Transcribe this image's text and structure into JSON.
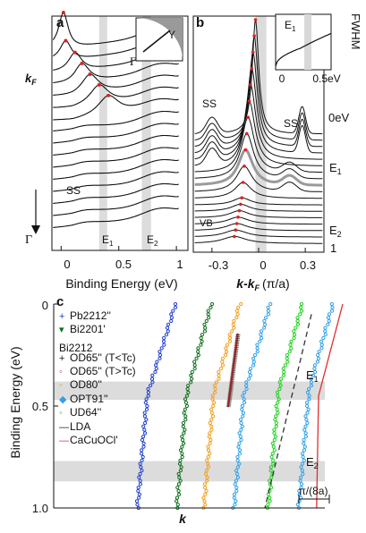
{
  "chart_data": [
    {
      "panel": "a",
      "type": "line",
      "xlabel": "Binding Energy (eV)",
      "xticks": [
        "0",
        "0.5",
        "1"
      ],
      "xlim": [
        -0.08,
        1.1
      ],
      "left_labels": {
        "kf": "k",
        "kf_sub": "F",
        "gamma": "Γ"
      },
      "annotations": {
        "top": "Γ",
        "ss": "SS",
        "e1": "E",
        "e1_sub": "1",
        "e2": "E",
        "e2_sub": "2"
      },
      "inset_label": "Y",
      "bands": [
        [
          0.33,
          0.4
        ],
        [
          0.7,
          0.78
        ]
      ],
      "peak_positions": [
        0.02,
        0.04,
        0.12,
        0.18,
        0.25,
        0.33,
        0.41
      ]
    },
    {
      "panel": "b",
      "type": "line",
      "xlabel": "k-k",
      "xlabel_sub": "F",
      "xlabel_units": "(π/a)",
      "xticks": [
        "-0.3",
        "0",
        "0.3"
      ],
      "xlim": [
        -0.42,
        0.42
      ],
      "right_labels": {
        "zero": "0eV",
        "e1": "E",
        "e1_sub": "1",
        "e2": "E",
        "e2_sub": "2",
        "one": "1"
      },
      "annotations": {
        "ss_left": "SS",
        "ss_right": "SS",
        "vb": "VB"
      },
      "band": [
        -0.02,
        0.05
      ],
      "inset": {
        "ylabel": "FWHM",
        "e1": "E",
        "e1_sub": "1",
        "xticks": [
          "0",
          "0.5eV"
        ]
      }
    },
    {
      "panel": "c",
      "type": "line",
      "ylabel": "Binding Energy (eV)",
      "xlabel": "k",
      "yticks": [
        "0",
        "0.5",
        "1.0"
      ],
      "ylim": [
        0,
        1.0
      ],
      "bands": [
        {
          "label": "E",
          "sub": "1",
          "range": [
            0.38,
            0.47
          ]
        },
        {
          "label": "E",
          "sub": "2",
          "range": [
            0.77,
            0.87
          ]
        }
      ],
      "scale_label": "π/(8a)",
      "legend_heading": "Bi2212",
      "series": [
        {
          "name": "Pb2212''",
          "color": "#1f3fd0",
          "marker": "+"
        },
        {
          "name": "Bi2201'",
          "color": "#0a6e1a",
          "marker": "▾"
        },
        {
          "name": "OD65'' (T<Tc)",
          "color": "#202020",
          "marker": "+"
        },
        {
          "name": "OD65'' (T>Tc)",
          "color": "#e03030",
          "marker": "◦"
        },
        {
          "name": "OD80''",
          "color": "#f0a020",
          "marker": "◦"
        },
        {
          "name": "OPT91''",
          "color": "#30a0e8",
          "marker": "◆"
        },
        {
          "name": "UD64''",
          "color": "#20d020",
          "marker": "◦"
        },
        {
          "name": "LDA",
          "color": "#202020",
          "marker": "—"
        },
        {
          "name": "CaCuOCl'",
          "color": "#e03030",
          "marker": "—"
        }
      ]
    }
  ],
  "panel_labels": {
    "a": "a",
    "b": "b",
    "c": "c"
  }
}
